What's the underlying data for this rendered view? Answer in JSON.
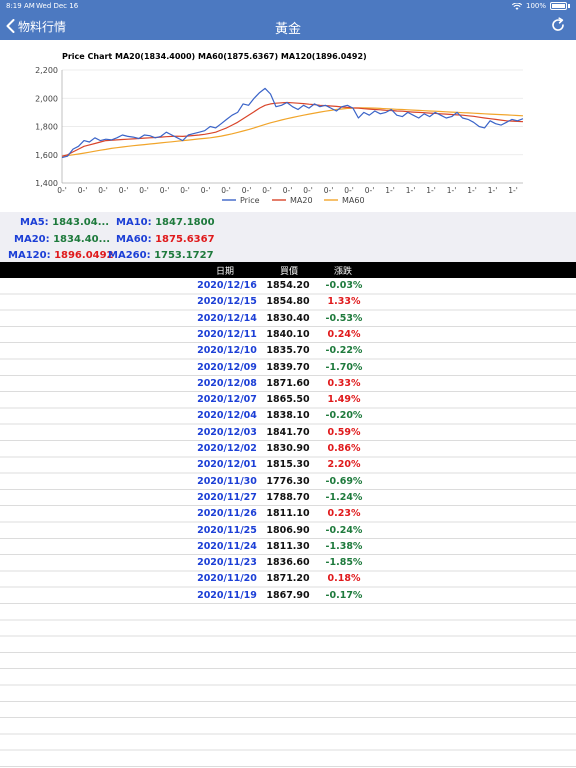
{
  "status_bar": {
    "time": "8:19 AM",
    "date": "Wed Dec 16",
    "battery": "100%"
  },
  "nav": {
    "back_label": "物料行情",
    "title": "黃金",
    "refresh_icon": "refresh-icon"
  },
  "chart_data": {
    "type": "line",
    "title": "Price Chart MA20(1834.4000) MA60(1875.6367) MA120(1896.0492)",
    "xlabel": "",
    "ylabel": "",
    "ylim": [
      1400,
      2200
    ],
    "yticks": [
      "2,200",
      "2,000",
      "1,800",
      "1,600",
      "1,400"
    ],
    "xtick_labels": [
      "0-'",
      "0-'",
      "0-'",
      "0-'",
      "0-'",
      "0-'",
      "0-'",
      "0-'",
      "0-'",
      "0-'",
      "0-'",
      "0-'",
      "0-'",
      "0-'",
      "0-'",
      "0-'",
      "1-'",
      "1-'",
      "1-'",
      "1-'",
      "1-'",
      "1-'",
      "1-'"
    ],
    "legend": "bottom",
    "series": [
      {
        "name": "Price",
        "color": "#3b64c8",
        "values": [
          1580,
          1590,
          1640,
          1660,
          1700,
          1690,
          1720,
          1700,
          1710,
          1705,
          1720,
          1740,
          1730,
          1725,
          1715,
          1740,
          1735,
          1720,
          1730,
          1760,
          1740,
          1720,
          1700,
          1740,
          1750,
          1760,
          1770,
          1800,
          1790,
          1820,
          1850,
          1880,
          1900,
          1960,
          1950,
          2000,
          2040,
          2070,
          2030,
          1940,
          1950,
          1970,
          1940,
          1920,
          1950,
          1930,
          1960,
          1940,
          1950,
          1930,
          1910,
          1940,
          1950,
          1930,
          1860,
          1900,
          1880,
          1910,
          1890,
          1900,
          1920,
          1880,
          1870,
          1900,
          1880,
          1860,
          1890,
          1870,
          1900,
          1880,
          1860,
          1870,
          1900,
          1860,
          1850,
          1830,
          1800,
          1790,
          1840,
          1820,
          1810,
          1830,
          1850,
          1840,
          1855
        ]
      },
      {
        "name": "MA20",
        "color": "#d9452a",
        "values": [
          1590,
          1600,
          1620,
          1640,
          1660,
          1670,
          1680,
          1690,
          1700,
          1702,
          1705,
          1708,
          1710,
          1712,
          1715,
          1718,
          1720,
          1722,
          1725,
          1728,
          1730,
          1731,
          1730,
          1733,
          1736,
          1740,
          1745,
          1752,
          1760,
          1775,
          1790,
          1810,
          1830,
          1855,
          1880,
          1905,
          1930,
          1950,
          1960,
          1965,
          1968,
          1970,
          1968,
          1965,
          1962,
          1958,
          1955,
          1950,
          1948,
          1945,
          1942,
          1938,
          1935,
          1932,
          1930,
          1926,
          1923,
          1920,
          1918,
          1915,
          1913,
          1910,
          1908,
          1905,
          1902,
          1900,
          1898,
          1895,
          1893,
          1890,
          1888,
          1885,
          1882,
          1880,
          1876,
          1872,
          1866,
          1860,
          1855,
          1850,
          1845,
          1840,
          1838,
          1836,
          1834
        ]
      },
      {
        "name": "MA60",
        "color": "#f1a52b",
        "values": [
          1590,
          1595,
          1600,
          1605,
          1612,
          1618,
          1625,
          1632,
          1638,
          1645,
          1650,
          1655,
          1660,
          1664,
          1668,
          1672,
          1676,
          1680,
          1684,
          1688,
          1692,
          1696,
          1700,
          1704,
          1708,
          1712,
          1716,
          1720,
          1726,
          1732,
          1740,
          1748,
          1758,
          1768,
          1778,
          1790,
          1802,
          1815,
          1826,
          1836,
          1846,
          1855,
          1864,
          1872,
          1880,
          1888,
          1895,
          1902,
          1908,
          1914,
          1920,
          1924,
          1928,
          1930,
          1932,
          1932,
          1931,
          1930,
          1928,
          1926,
          1924,
          1922,
          1920,
          1918,
          1916,
          1914,
          1912,
          1910,
          1908,
          1906,
          1904,
          1902,
          1900,
          1898,
          1896,
          1894,
          1892,
          1890,
          1888,
          1886,
          1884,
          1882,
          1880,
          1878,
          1876
        ]
      }
    ]
  },
  "ma": {
    "ma5_label": "MA5:",
    "ma5_value": "1843.04...",
    "ma10_label": "MA10:",
    "ma10_value": "1847.1800",
    "ma20_label": "MA20:",
    "ma20_value": "1834.40...",
    "ma60_label": "MA60:",
    "ma60_value": "1875.6367",
    "ma120_label": "MA120:",
    "ma120_value": "1896.0492",
    "ma260_label": "MA260:",
    "ma260_value": "1753.1727"
  },
  "table": {
    "headers": {
      "date": "日期",
      "price": "買價",
      "change": "漲跌"
    },
    "rows": [
      {
        "date": "2020/12/16",
        "price": "1854.20",
        "change": "-0.03%",
        "dir": "down"
      },
      {
        "date": "2020/12/15",
        "price": "1854.80",
        "change": "1.33%",
        "dir": "up"
      },
      {
        "date": "2020/12/14",
        "price": "1830.40",
        "change": "-0.53%",
        "dir": "down"
      },
      {
        "date": "2020/12/11",
        "price": "1840.10",
        "change": "0.24%",
        "dir": "up"
      },
      {
        "date": "2020/12/10",
        "price": "1835.70",
        "change": "-0.22%",
        "dir": "down"
      },
      {
        "date": "2020/12/09",
        "price": "1839.70",
        "change": "-1.70%",
        "dir": "down"
      },
      {
        "date": "2020/12/08",
        "price": "1871.60",
        "change": "0.33%",
        "dir": "up"
      },
      {
        "date": "2020/12/07",
        "price": "1865.50",
        "change": "1.49%",
        "dir": "up"
      },
      {
        "date": "2020/12/04",
        "price": "1838.10",
        "change": "-0.20%",
        "dir": "down"
      },
      {
        "date": "2020/12/03",
        "price": "1841.70",
        "change": "0.59%",
        "dir": "up"
      },
      {
        "date": "2020/12/02",
        "price": "1830.90",
        "change": "0.86%",
        "dir": "up"
      },
      {
        "date": "2020/12/01",
        "price": "1815.30",
        "change": "2.20%",
        "dir": "up"
      },
      {
        "date": "2020/11/30",
        "price": "1776.30",
        "change": "-0.69%",
        "dir": "down"
      },
      {
        "date": "2020/11/27",
        "price": "1788.70",
        "change": "-1.24%",
        "dir": "down"
      },
      {
        "date": "2020/11/26",
        "price": "1811.10",
        "change": "0.23%",
        "dir": "up"
      },
      {
        "date": "2020/11/25",
        "price": "1806.90",
        "change": "-0.24%",
        "dir": "down"
      },
      {
        "date": "2020/11/24",
        "price": "1811.30",
        "change": "-1.38%",
        "dir": "down"
      },
      {
        "date": "2020/11/23",
        "price": "1836.60",
        "change": "-1.85%",
        "dir": "down"
      },
      {
        "date": "2020/11/20",
        "price": "1871.20",
        "change": "0.18%",
        "dir": "up"
      },
      {
        "date": "2020/11/19",
        "price": "1867.90",
        "change": "-0.17%",
        "dir": "down"
      }
    ]
  },
  "colors": {
    "nav_bg": "#4c79c1",
    "up": "#e0191b",
    "down": "#1e7a3c",
    "label_blue": "#1c3fd6"
  }
}
